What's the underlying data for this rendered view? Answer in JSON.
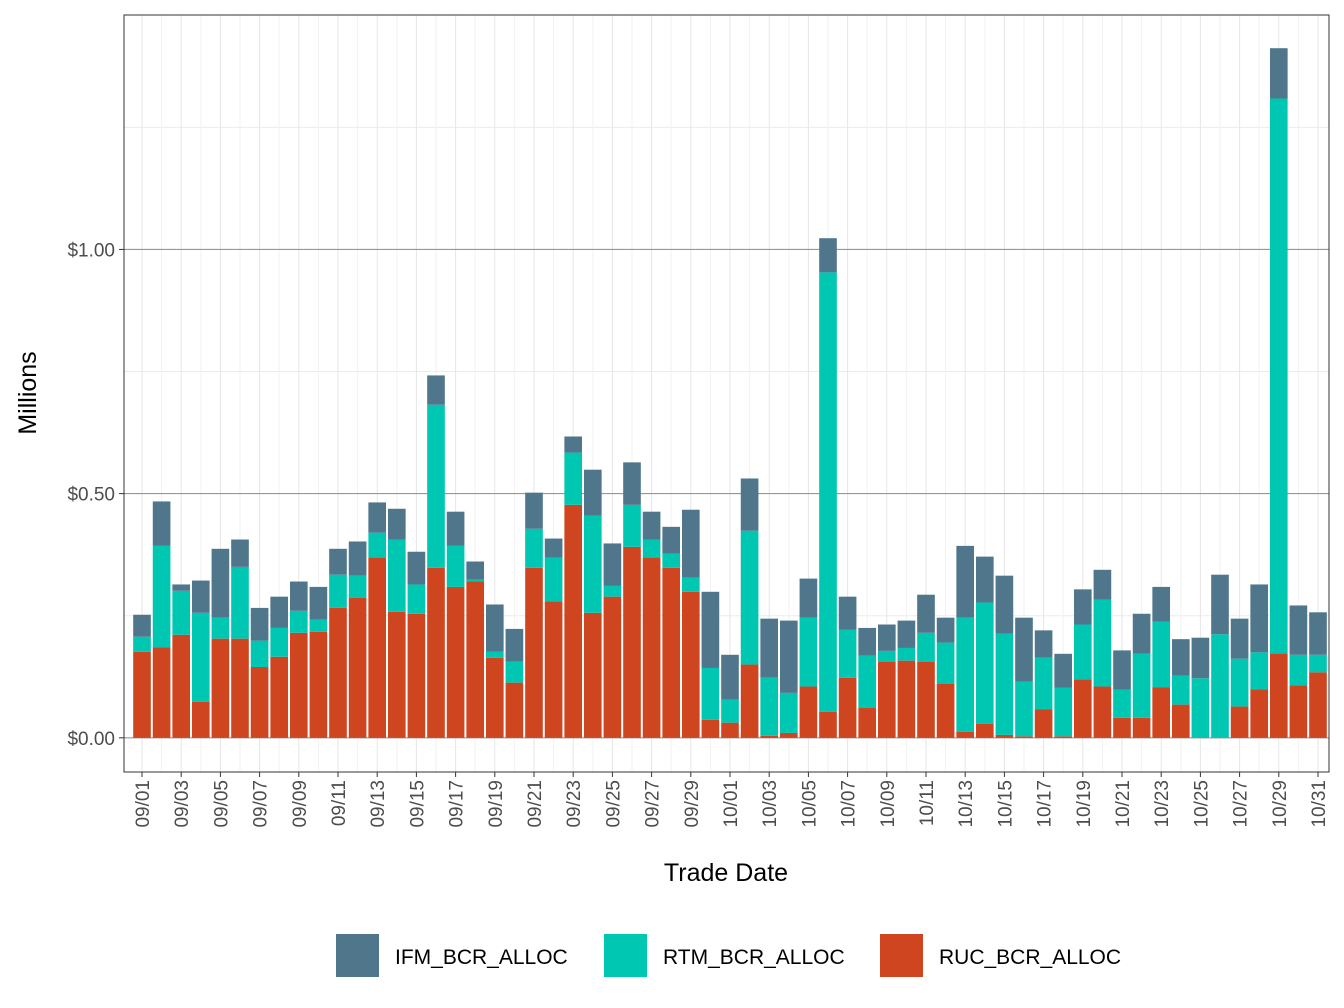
{
  "chart_data": {
    "type": "bar",
    "stacked": true,
    "xlabel": "Trade Date",
    "ylabel": "Millions",
    "ylim": [
      -0.07,
      1.48
    ],
    "y_ticks": [
      0,
      0.5,
      1.0
    ],
    "y_tick_labels": [
      "$0.00",
      "$0.50",
      "$1.00"
    ],
    "grid": true,
    "legend_position": "bottom",
    "categories": [
      "09/01",
      "09/02",
      "09/03",
      "09/04",
      "09/05",
      "09/06",
      "09/07",
      "09/08",
      "09/09",
      "09/10",
      "09/11",
      "09/12",
      "09/13",
      "09/14",
      "09/15",
      "09/16",
      "09/17",
      "09/18",
      "09/19",
      "09/20",
      "09/21",
      "09/22",
      "09/23",
      "09/24",
      "09/25",
      "09/26",
      "09/27",
      "09/28",
      "09/29",
      "09/30",
      "10/01",
      "10/02",
      "10/03",
      "10/04",
      "10/05",
      "10/06",
      "10/07",
      "10/08",
      "10/09",
      "10/10",
      "10/11",
      "10/12",
      "10/13",
      "10/14",
      "10/15",
      "10/16",
      "10/17",
      "10/18",
      "10/19",
      "10/20",
      "10/21",
      "10/22",
      "10/23",
      "10/24",
      "10/25",
      "10/26",
      "10/27",
      "10/28",
      "10/29",
      "10/30",
      "10/31"
    ],
    "tick_labels": [
      "09/01",
      "09/03",
      "09/05",
      "09/07",
      "09/09",
      "09/11",
      "09/13",
      "09/15",
      "09/17",
      "09/19",
      "09/21",
      "09/23",
      "09/25",
      "09/27",
      "09/29",
      "10/01",
      "10/03",
      "10/05",
      "10/07",
      "10/09",
      "10/11",
      "10/13",
      "10/15",
      "10/17",
      "10/19",
      "10/21",
      "10/23",
      "10/25",
      "10/27",
      "10/29",
      "10/31"
    ],
    "series": [
      {
        "name": "RUC_BCR_ALLOC",
        "color": "#CF4520",
        "values": [
          0.176,
          0.185,
          0.211,
          0.074,
          0.203,
          0.203,
          0.145,
          0.166,
          0.215,
          0.217,
          0.266,
          0.287,
          0.369,
          0.258,
          0.254,
          0.348,
          0.309,
          0.32,
          0.164,
          0.113,
          0.348,
          0.279,
          0.477,
          0.256,
          0.289,
          0.391,
          0.369,
          0.348,
          0.299,
          0.037,
          0.031,
          0.15,
          0.004,
          0.01,
          0.105,
          0.053,
          0.123,
          0.061,
          0.156,
          0.158,
          0.156,
          0.111,
          0.012,
          0.029,
          0.006,
          0.003,
          0.058,
          0.003,
          0.12,
          0.105,
          0.041,
          0.041,
          0.103,
          0.068,
          0.0,
          0.0,
          0.064,
          0.099,
          0.173,
          0.107,
          0.134
        ]
      },
      {
        "name": "RTM_BCR_ALLOC",
        "color": "#00C7B1",
        "values": [
          0.031,
          0.208,
          0.09,
          0.182,
          0.043,
          0.147,
          0.054,
          0.059,
          0.045,
          0.025,
          0.068,
          0.045,
          0.051,
          0.148,
          0.06,
          0.334,
          0.084,
          0.004,
          0.012,
          0.043,
          0.08,
          0.09,
          0.107,
          0.199,
          0.022,
          0.086,
          0.037,
          0.029,
          0.029,
          0.106,
          0.047,
          0.274,
          0.119,
          0.082,
          0.141,
          0.9,
          0.098,
          0.107,
          0.022,
          0.026,
          0.059,
          0.084,
          0.234,
          0.248,
          0.207,
          0.112,
          0.106,
          0.1,
          0.112,
          0.178,
          0.058,
          0.131,
          0.135,
          0.059,
          0.122,
          0.212,
          0.098,
          0.076,
          1.136,
          0.063,
          0.036
        ]
      },
      {
        "name": "IFM_BCR_ALLOC",
        "color": "#50768C",
        "values": [
          0.045,
          0.091,
          0.013,
          0.066,
          0.141,
          0.056,
          0.067,
          0.064,
          0.06,
          0.067,
          0.053,
          0.07,
          0.062,
          0.063,
          0.067,
          0.06,
          0.07,
          0.037,
          0.097,
          0.067,
          0.074,
          0.039,
          0.033,
          0.094,
          0.087,
          0.087,
          0.057,
          0.055,
          0.139,
          0.156,
          0.092,
          0.107,
          0.121,
          0.148,
          0.08,
          0.07,
          0.068,
          0.057,
          0.054,
          0.056,
          0.078,
          0.051,
          0.147,
          0.094,
          0.119,
          0.131,
          0.056,
          0.069,
          0.072,
          0.061,
          0.08,
          0.082,
          0.071,
          0.075,
          0.083,
          0.122,
          0.082,
          0.139,
          0.103,
          0.101,
          0.087
        ]
      }
    ],
    "legend": [
      "IFM_BCR_ALLOC",
      "RTM_BCR_ALLOC",
      "RUC_BCR_ALLOC"
    ]
  }
}
